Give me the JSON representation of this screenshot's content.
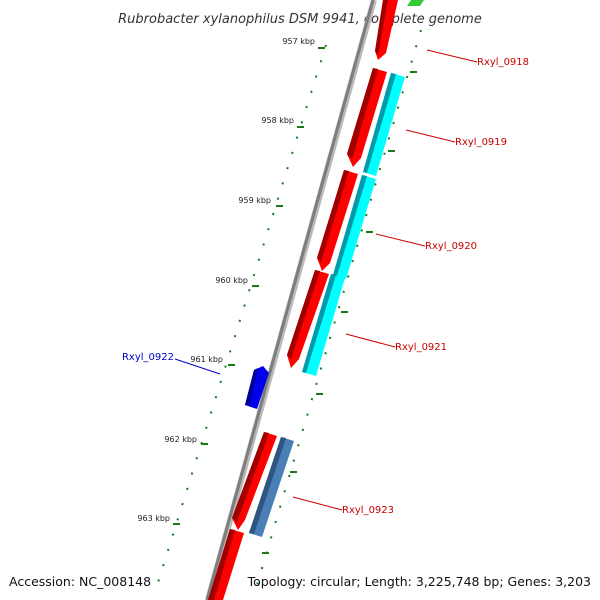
{
  "title": "Rubrobacter xylanophilus DSM 9941, complete genome",
  "accession": "Accession: NC_008148",
  "topology": "Topology: circular; Length: 3,225,748 bp; Genes: 3,203",
  "colors": {
    "backbone": "#8a8a8a",
    "forward_cds": "#ff0000",
    "reverse_cds": "#00ffff",
    "forward_trna_like": "#33cc33",
    "reverse_gene_steel": "#4a7fb5",
    "label_forward": "#cc0000",
    "label_reverse": "#0000cc",
    "ticks": "#1a7a1a"
  },
  "ticks": [
    {
      "label": "957 kbp"
    },
    {
      "label": "958 kbp"
    },
    {
      "label": "959 kbp"
    },
    {
      "label": "960 kbp"
    },
    {
      "label": "961 kbp"
    },
    {
      "label": "962 kbp"
    },
    {
      "label": "963 kbp"
    }
  ],
  "genes": [
    {
      "name": "Rxyl_0918",
      "strand": "forward"
    },
    {
      "name": "Rxyl_0919",
      "strand": "forward"
    },
    {
      "name": "Rxyl_0920",
      "strand": "forward"
    },
    {
      "name": "Rxyl_0921",
      "strand": "forward"
    },
    {
      "name": "Rxyl_0922",
      "strand": "reverse"
    },
    {
      "name": "Rxyl_0923",
      "strand": "forward"
    }
  ]
}
